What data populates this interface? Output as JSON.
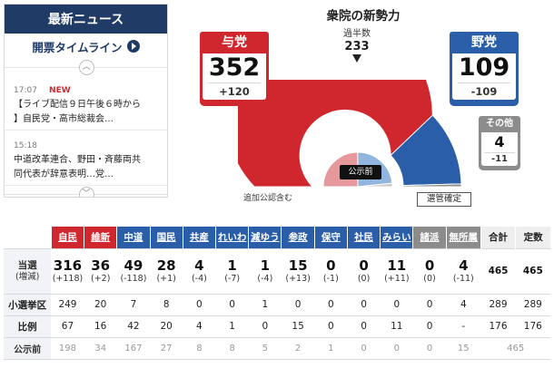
{
  "news": {
    "header": "最新ニュース",
    "timeline_label": "開票タイムライン",
    "items": [
      {
        "time": "17:07",
        "badge": "NEW",
        "line1": "【ライブ配信９日午後６時から",
        "line2": "】自民党・高市総裁会…"
      },
      {
        "time": "15:18",
        "badge": "",
        "line1": "中道改革連合、野田・斉藤両共",
        "line2": "同代表が辞意表明…党…"
      }
    ]
  },
  "chamber": {
    "title": "衆院の新勢力",
    "majority_label": "過半数",
    "majority_value": "233",
    "total_seats": 465,
    "note": "追加公認含む",
    "pre_election_button": "公示前",
    "confirmed_badge": "選管確定",
    "colors": {
      "ruling": "#d0262d",
      "opposition": "#2a5ea9",
      "other": "#8c8c8c"
    }
  },
  "blocs": {
    "ruling": {
      "name": "与党",
      "seats": "352",
      "change": "+120",
      "seat_count": 352,
      "pre_count": 232
    },
    "opposition": {
      "name": "野党",
      "seats": "109",
      "change": "-109",
      "seat_count": 109,
      "pre_count": 218
    },
    "other": {
      "name": "その他",
      "seats": "4",
      "change": "-11",
      "seat_count": 4,
      "pre_count": 15
    }
  },
  "table": {
    "headers": {
      "parties": [
        {
          "name": "自民",
          "color": "#d0262d"
        },
        {
          "name": "維新",
          "color": "#d0262d"
        },
        {
          "name": "中道",
          "color": "#2a5ea9"
        },
        {
          "name": "国民",
          "color": "#2a5ea9"
        },
        {
          "name": "共産",
          "color": "#2a5ea9"
        },
        {
          "name": "れいわ",
          "color": "#2a5ea9"
        },
        {
          "name": "減ゆう",
          "color": "#2a5ea9"
        },
        {
          "name": "参政",
          "color": "#2a5ea9"
        },
        {
          "name": "保守",
          "color": "#2a5ea9"
        },
        {
          "name": "社民",
          "color": "#2a5ea9"
        },
        {
          "name": "みらい",
          "color": "#2a5ea9"
        },
        {
          "name": "諸派",
          "color": "#8c8c8c"
        },
        {
          "name": "無所属",
          "color": "#8c8c8c"
        }
      ],
      "total": "合計",
      "capacity": "定数"
    },
    "rows": {
      "win": {
        "label": "当選",
        "sublabel": "(増減)",
        "seats": [
          "316",
          "36",
          "49",
          "28",
          "4",
          "1",
          "1",
          "15",
          "0",
          "0",
          "11",
          "0",
          "4"
        ],
        "changes": [
          "(+118)",
          "(+2)",
          "(-118)",
          "(+1)",
          "(-4)",
          "(-7)",
          "(-4)",
          "(+13)",
          "(-1)",
          "(0)",
          "(+11)",
          "(0)",
          "(-11)"
        ],
        "total": "465",
        "capacity": "465"
      },
      "district": {
        "label": "小選挙区",
        "values": [
          "249",
          "20",
          "7",
          "8",
          "0",
          "0",
          "1",
          "0",
          "0",
          "0",
          "0",
          "0",
          "4"
        ],
        "total": "289",
        "capacity": "289"
      },
      "pr": {
        "label": "比例",
        "values": [
          "67",
          "16",
          "42",
          "20",
          "4",
          "1",
          "0",
          "15",
          "0",
          "0",
          "11",
          "0",
          "-"
        ],
        "total": "176",
        "capacity": "176"
      },
      "pre": {
        "label": "公示前",
        "values": [
          "198",
          "34",
          "167",
          "27",
          "8",
          "8",
          "5",
          "2",
          "1",
          "0",
          "0",
          "0",
          "15"
        ],
        "total": "465",
        "capacity": ""
      }
    }
  }
}
